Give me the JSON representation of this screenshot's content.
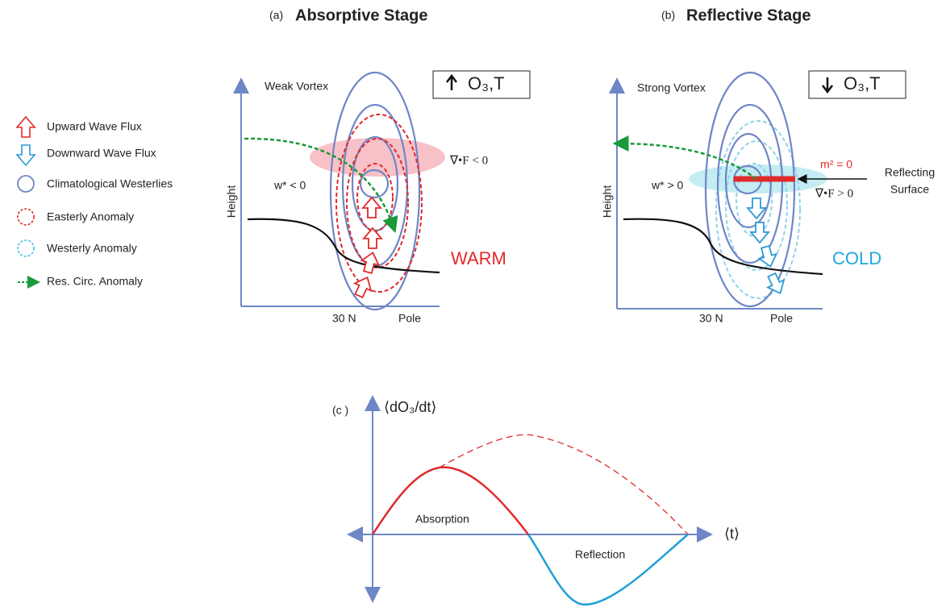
{
  "legend": {
    "items": [
      "Upward Wave Flux",
      "Downward Wave Flux",
      "Climatological Westerlies",
      "Easterly Anomaly",
      "Westerly Anomaly",
      "Res. Circ. Anomaly"
    ]
  },
  "panel_a": {
    "tag": "(a)",
    "title": "Absorptive Stage",
    "box": "O₃,T",
    "vortex": "Weak Vortex",
    "y_label": "Height",
    "w_star": "w* < 0",
    "divergence": "∇•F < 0",
    "temperature": "WARM",
    "x_left": "30 N",
    "x_right": "Pole"
  },
  "panel_b": {
    "tag": "(b)",
    "title": "Reflective Stage",
    "box": "O₃,T",
    "vortex": "Strong Vortex",
    "y_label": "Height",
    "w_star": "w* > 0",
    "refractive": "m² = 0",
    "divergence": "∇•F > 0",
    "surface_line1": "Reflecting",
    "surface_line2": "Surface",
    "temperature": "COLD",
    "x_left": "30 N",
    "x_right": "Pole"
  },
  "panel_c": {
    "tag": "(c )",
    "y_label": "⟨dO₃/dt⟩",
    "x_label": "⟨t⟩",
    "absorption": "Absorption",
    "reflection": "Reflection"
  }
}
